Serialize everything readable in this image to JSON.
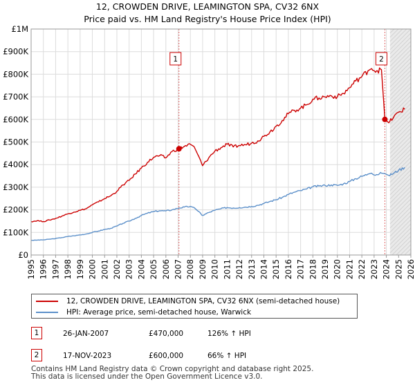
{
  "chart_data": {
    "type": "line",
    "title": "12, CROWDEN DRIVE, LEAMINGTON SPA, CV32 6NX",
    "subtitle": "Price paid vs. HM Land Registry's House Price Index (HPI)",
    "xlim": [
      1995,
      2026
    ],
    "ylim": [
      0,
      1000000
    ],
    "x_ticks": [
      "1995",
      "1996",
      "1997",
      "1998",
      "1999",
      "2000",
      "2001",
      "2002",
      "2003",
      "2004",
      "2005",
      "2006",
      "2007",
      "2008",
      "2009",
      "2010",
      "2011",
      "2012",
      "2013",
      "2014",
      "2015",
      "2016",
      "2017",
      "2018",
      "2019",
      "2020",
      "2021",
      "2022",
      "2023",
      "2024",
      "2025",
      "2026"
    ],
    "y_ticks": [
      {
        "value": 0,
        "label": "£0"
      },
      {
        "value": 100000,
        "label": "£100K"
      },
      {
        "value": 200000,
        "label": "£200K"
      },
      {
        "value": 300000,
        "label": "£300K"
      },
      {
        "value": 400000,
        "label": "£400K"
      },
      {
        "value": 500000,
        "label": "£500K"
      },
      {
        "value": 600000,
        "label": "£600K"
      },
      {
        "value": 700000,
        "label": "£700K"
      },
      {
        "value": 800000,
        "label": "£800K"
      },
      {
        "value": 900000,
        "label": "£900K"
      },
      {
        "value": 1000000,
        "label": "£1M"
      }
    ],
    "grid": true,
    "shade_after": 2024.3,
    "series": [
      {
        "name": "12, CROWDEN DRIVE, LEAMINGTON SPA, CV32 6NX (semi-detached house)",
        "color": "#cc0000",
        "points": [
          [
            1995.0,
            148000
          ],
          [
            1995.5,
            152000
          ],
          [
            1996.0,
            148000
          ],
          [
            1996.5,
            155000
          ],
          [
            1997.0,
            162000
          ],
          [
            1997.5,
            172000
          ],
          [
            1998.0,
            182000
          ],
          [
            1998.5,
            190000
          ],
          [
            1999.0,
            198000
          ],
          [
            1999.5,
            205000
          ],
          [
            2000.0,
            222000
          ],
          [
            2000.5,
            235000
          ],
          [
            2001.0,
            250000
          ],
          [
            2001.5,
            262000
          ],
          [
            2002.0,
            282000
          ],
          [
            2002.5,
            310000
          ],
          [
            2003.0,
            330000
          ],
          [
            2003.5,
            358000
          ],
          [
            2004.0,
            385000
          ],
          [
            2004.5,
            410000
          ],
          [
            2005.0,
            432000
          ],
          [
            2005.5,
            440000
          ],
          [
            2006.0,
            430000
          ],
          [
            2006.5,
            458000
          ],
          [
            2007.07,
            470000
          ],
          [
            2007.5,
            480000
          ],
          [
            2008.0,
            490000
          ],
          [
            2008.3,
            480000
          ],
          [
            2008.6,
            445000
          ],
          [
            2009.0,
            395000
          ],
          [
            2009.5,
            430000
          ],
          [
            2010.0,
            460000
          ],
          [
            2010.5,
            475000
          ],
          [
            2011.0,
            490000
          ],
          [
            2011.5,
            478000
          ],
          [
            2012.0,
            485000
          ],
          [
            2012.5,
            488000
          ],
          [
            2013.0,
            495000
          ],
          [
            2013.5,
            505000
          ],
          [
            2014.0,
            525000
          ],
          [
            2014.5,
            545000
          ],
          [
            2015.0,
            570000
          ],
          [
            2015.5,
            595000
          ],
          [
            2016.0,
            625000
          ],
          [
            2016.5,
            640000
          ],
          [
            2017.0,
            650000
          ],
          [
            2017.5,
            665000
          ],
          [
            2018.0,
            690000
          ],
          [
            2018.5,
            695000
          ],
          [
            2019.0,
            700000
          ],
          [
            2019.5,
            705000
          ],
          [
            2020.0,
            700000
          ],
          [
            2020.5,
            715000
          ],
          [
            2021.0,
            740000
          ],
          [
            2021.5,
            770000
          ],
          [
            2022.0,
            790000
          ],
          [
            2022.5,
            815000
          ],
          [
            2022.8,
            825000
          ],
          [
            2023.2,
            815000
          ],
          [
            2023.6,
            820000
          ],
          [
            2023.88,
            600000
          ],
          [
            2024.2,
            585000
          ],
          [
            2024.6,
            610000
          ],
          [
            2025.0,
            632000
          ],
          [
            2025.5,
            645000
          ]
        ]
      },
      {
        "name": "HPI: Average price, semi-detached house, Warwick",
        "color": "#5b8fc9",
        "points": [
          [
            1995.0,
            65000
          ],
          [
            1995.5,
            66000
          ],
          [
            1996.0,
            67000
          ],
          [
            1996.5,
            70000
          ],
          [
            1997.0,
            73000
          ],
          [
            1997.5,
            77000
          ],
          [
            1998.0,
            82000
          ],
          [
            1998.5,
            85000
          ],
          [
            1999.0,
            89000
          ],
          [
            1999.5,
            93000
          ],
          [
            2000.0,
            100000
          ],
          [
            2000.5,
            106000
          ],
          [
            2001.0,
            113000
          ],
          [
            2001.5,
            118000
          ],
          [
            2002.0,
            128000
          ],
          [
            2002.5,
            140000
          ],
          [
            2003.0,
            150000
          ],
          [
            2003.5,
            162000
          ],
          [
            2004.0,
            175000
          ],
          [
            2004.5,
            185000
          ],
          [
            2005.0,
            192000
          ],
          [
            2005.5,
            196000
          ],
          [
            2006.0,
            195000
          ],
          [
            2006.5,
            200000
          ],
          [
            2007.07,
            208000
          ],
          [
            2007.5,
            212000
          ],
          [
            2008.0,
            215000
          ],
          [
            2008.3,
            210000
          ],
          [
            2008.6,
            195000
          ],
          [
            2009.0,
            175000
          ],
          [
            2009.5,
            188000
          ],
          [
            2010.0,
            198000
          ],
          [
            2010.5,
            205000
          ],
          [
            2011.0,
            210000
          ],
          [
            2011.5,
            208000
          ],
          [
            2012.0,
            210000
          ],
          [
            2012.5,
            212000
          ],
          [
            2013.0,
            215000
          ],
          [
            2013.5,
            220000
          ],
          [
            2014.0,
            228000
          ],
          [
            2014.5,
            237000
          ],
          [
            2015.0,
            245000
          ],
          [
            2015.5,
            255000
          ],
          [
            2016.0,
            268000
          ],
          [
            2016.5,
            278000
          ],
          [
            2017.0,
            285000
          ],
          [
            2017.5,
            292000
          ],
          [
            2018.0,
            302000
          ],
          [
            2018.5,
            305000
          ],
          [
            2019.0,
            308000
          ],
          [
            2019.5,
            310000
          ],
          [
            2020.0,
            308000
          ],
          [
            2020.5,
            315000
          ],
          [
            2021.0,
            325000
          ],
          [
            2021.5,
            338000
          ],
          [
            2022.0,
            348000
          ],
          [
            2022.5,
            358000
          ],
          [
            2022.8,
            362000
          ],
          [
            2023.2,
            356000
          ],
          [
            2023.6,
            362000
          ],
          [
            2023.88,
            360000
          ],
          [
            2024.2,
            352000
          ],
          [
            2024.6,
            362000
          ],
          [
            2025.0,
            375000
          ],
          [
            2025.5,
            388000
          ]
        ]
      }
    ],
    "annotations": [
      {
        "label": "1",
        "x": 2007.07,
        "y": 470000
      },
      {
        "label": "2",
        "x": 2023.88,
        "y": 600000
      }
    ]
  },
  "legend": {
    "property_label": "12, CROWDEN DRIVE, LEAMINGTON SPA, CV32 6NX (semi-detached house)",
    "hpi_label": "HPI: Average price, semi-detached house, Warwick",
    "property_color": "#cc0000",
    "hpi_color": "#5b8fc9"
  },
  "transactions": [
    {
      "badge": "1",
      "date": "26-JAN-2007",
      "price": "£470,000",
      "hpi": "126% ↑ HPI"
    },
    {
      "badge": "2",
      "date": "17-NOV-2023",
      "price": "£600,000",
      "hpi": "66% ↑ HPI"
    }
  ],
  "footer": {
    "line1": "Contains HM Land Registry data © Crown copyright and database right 2025.",
    "line2": "This data is licensed under the Open Government Licence v3.0."
  }
}
